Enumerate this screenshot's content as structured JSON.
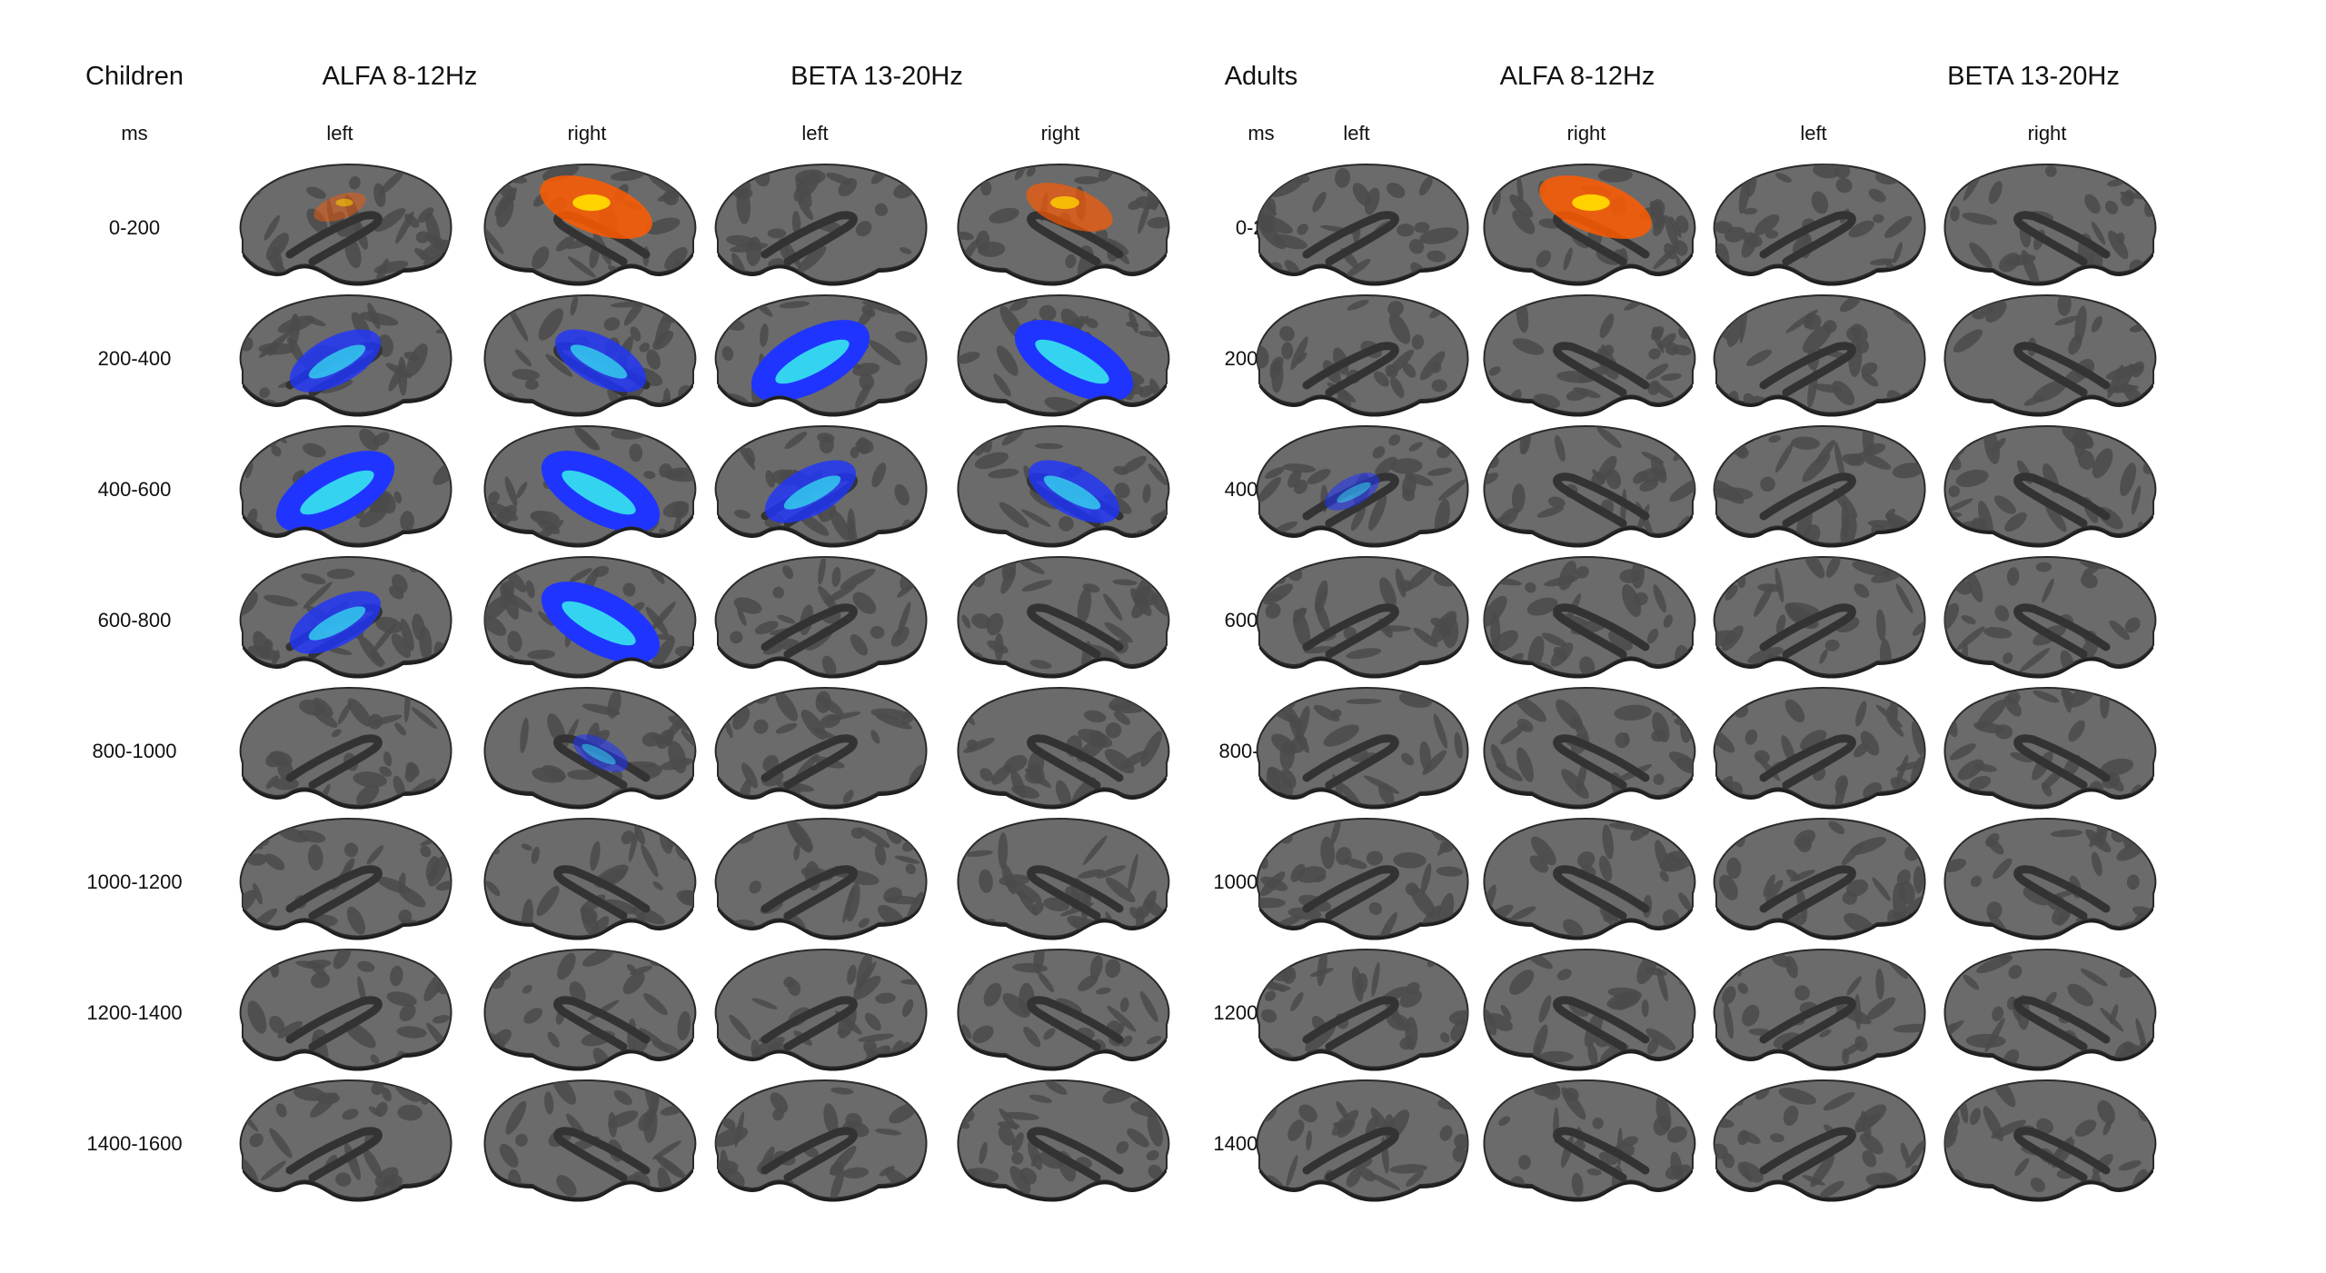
{
  "groups": [
    {
      "label": "Children",
      "bands": [
        "ALFA 8-12Hz",
        "BETA 13-20Hz"
      ]
    },
    {
      "label": "Adults",
      "bands": [
        "ALFA 8-12Hz",
        "BETA 13-20Hz"
      ]
    }
  ],
  "time_unit": "ms",
  "hemispheres": [
    "left",
    "right"
  ],
  "time_windows": [
    "0-200",
    "200-400",
    "400-600",
    "600-800",
    "800-1000",
    "1000-1200",
    "1200-1400",
    "1400-1600"
  ],
  "colors": {
    "cortex_base": "#6b6b6b",
    "sulci": "#4a4a4a",
    "increase": "#ff5a00",
    "increase_hot": "#ffd200",
    "decrease": "#1f35ff",
    "decrease_strong": "#36e6f0"
  },
  "activations": {
    "children": {
      "alpha": {
        "left": [
          "increase-weak",
          "decrease-medium",
          "decrease-strong",
          "decrease-medium",
          "none",
          "none",
          "none",
          "none"
        ],
        "right": [
          "increase-strong",
          "decrease-medium",
          "decrease-strong",
          "decrease-strong",
          "decrease-weak",
          "none",
          "none",
          "none"
        ]
      },
      "beta": {
        "left": [
          "none",
          "decrease-strong",
          "decrease-medium",
          "none",
          "none",
          "none",
          "none",
          "none"
        ],
        "right": [
          "increase-medium",
          "decrease-strong",
          "decrease-medium",
          "none",
          "none",
          "none",
          "none",
          "none"
        ]
      }
    },
    "adults": {
      "alpha": {
        "left": [
          "none",
          "none",
          "decrease-weak",
          "none",
          "none",
          "none",
          "none",
          "none"
        ],
        "right": [
          "increase-strong",
          "none",
          "none",
          "none",
          "none",
          "none",
          "none",
          "none"
        ]
      },
      "beta": {
        "left": [
          "none",
          "none",
          "none",
          "none",
          "none",
          "none",
          "none",
          "none"
        ],
        "right": [
          "none",
          "none",
          "none",
          "none",
          "none",
          "none",
          "none",
          "none"
        ]
      }
    }
  }
}
